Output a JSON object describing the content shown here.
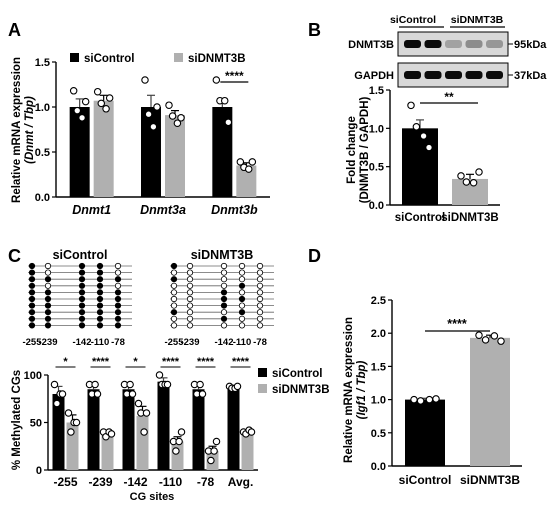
{
  "chart_data": [
    {
      "panel": "A",
      "type": "bar",
      "ylabel": "Relative mRNA expression",
      "ylabel2": "(Dnmt / Tbp)",
      "ylim": [
        0,
        1.5
      ],
      "yticks": [
        "0.0",
        "0.5",
        "1.0",
        "1.5"
      ],
      "categories": [
        "Dnmt1",
        "Dnmt3a",
        "Dnmt3b"
      ],
      "series": [
        {
          "name": "siControl",
          "color": "#000000",
          "values": [
            1.0,
            1.0,
            1.0
          ],
          "errors": [
            0.09,
            0.13,
            0.09
          ],
          "points": [
            [
              1.18,
              0.96,
              0.88,
              1.06
            ],
            [
              1.3,
              0.92,
              0.78,
              1.0
            ],
            [
              1.3,
              1.07,
              1.07,
              0.83
            ]
          ]
        },
        {
          "name": "siDNMT3B",
          "color": "#b0b0b0",
          "values": [
            1.07,
            0.91,
            0.35
          ],
          "errors": [
            0.06,
            0.05,
            0.03
          ],
          "points": [
            [
              1.17,
              1.04,
              0.98,
              1.1
            ],
            [
              1.02,
              0.9,
              0.82,
              0.88
            ],
            [
              0.39,
              0.33,
              0.31,
              0.39
            ]
          ]
        }
      ],
      "annotations": [
        {
          "category": "Dnmt3b",
          "text": "****"
        }
      ]
    },
    {
      "panel": "B",
      "type": "bar",
      "blot": {
        "groups": [
          "siControl",
          "siDNMT3B"
        ],
        "rows": [
          {
            "label": "DNMT3B",
            "marker": "95kDa",
            "intensity": [
              0.95,
              0.95,
              0.25,
              0.35,
              0.3
            ]
          },
          {
            "label": "GAPDH",
            "marker": "37kDa",
            "intensity": [
              0.95,
              0.95,
              0.95,
              0.95,
              0.95
            ]
          }
        ]
      },
      "ylabel": "Fold change",
      "ylabel2": "(DNMT3B / GAPDH)",
      "ylim": [
        0,
        1.5
      ],
      "yticks": [
        "0.0",
        "0.5",
        "1.0",
        "1.5"
      ],
      "categories": [
        "siControl",
        "siDNMT3B"
      ],
      "values": [
        1.0,
        0.34
      ],
      "errors": [
        0.11,
        0.06
      ],
      "colors": [
        "#000000",
        "#b0b0b0"
      ],
      "points": [
        [
          1.3,
          1.02,
          0.9,
          0.75
        ],
        [
          0.38,
          0.3,
          0.29,
          0.43
        ]
      ],
      "annotations": [
        {
          "text": "**"
        }
      ]
    },
    {
      "panel": "C",
      "type": "bar",
      "methylation_maps": [
        {
          "title": "siControl",
          "sites": [
            "-255",
            "-239",
            "-142",
            "-110",
            "-78"
          ],
          "clones": [
            [
              1,
              0,
              1,
              1,
              0
            ],
            [
              1,
              0,
              1,
              1,
              0
            ],
            [
              1,
              1,
              1,
              1,
              1
            ],
            [
              1,
              0,
              1,
              1,
              0
            ],
            [
              1,
              1,
              1,
              1,
              1
            ],
            [
              1,
              1,
              1,
              1,
              1
            ],
            [
              1,
              1,
              1,
              1,
              1
            ],
            [
              1,
              1,
              1,
              1,
              1
            ],
            [
              1,
              1,
              1,
              1,
              1
            ],
            [
              1,
              1,
              1,
              1,
              1
            ]
          ]
        },
        {
          "title": "siDNMT3B",
          "sites": [
            "-255",
            "-239",
            "-142",
            "-110",
            "-78"
          ],
          "clones": [
            [
              1,
              0,
              0,
              0,
              0
            ],
            [
              0,
              0,
              0,
              0,
              0
            ],
            [
              1,
              0,
              0,
              0,
              0
            ],
            [
              0,
              0,
              0,
              1,
              0
            ],
            [
              0,
              0,
              1,
              0,
              0
            ],
            [
              0,
              0,
              1,
              1,
              0
            ],
            [
              0,
              0,
              1,
              0,
              0
            ],
            [
              1,
              0,
              0,
              1,
              0
            ],
            [
              0,
              0,
              1,
              0,
              0
            ],
            [
              0,
              0,
              0,
              0,
              0
            ]
          ]
        }
      ],
      "ylabel": "% Methylated CGs",
      "xlabel": "CG sites",
      "ylim": [
        0,
        100
      ],
      "yticks": [
        "0",
        "50",
        "100"
      ],
      "categories": [
        "-255",
        "-239",
        "-142",
        "-110",
        "-78",
        "Avg."
      ],
      "series": [
        {
          "name": "siControl",
          "color": "#000000",
          "values": [
            80,
            85,
            85,
            93,
            85,
            87
          ],
          "errors": [
            8,
            4,
            4,
            4,
            4,
            2
          ],
          "points": [
            [
              90,
              70,
              80,
              80
            ],
            [
              90,
              80,
              90,
              80
            ],
            [
              90,
              80,
              90,
              80
            ],
            [
              100,
              90,
              90,
              90
            ],
            [
              90,
              80,
              90,
              80
            ],
            [
              88,
              86,
              86,
              88
            ]
          ]
        },
        {
          "name": "siDNMT3B",
          "color": "#b0b0b0",
          "values": [
            50,
            38,
            57,
            30,
            20,
            40
          ],
          "errors": [
            8,
            3,
            10,
            5,
            5,
            2
          ],
          "points": [
            [
              60,
              40,
              50,
              50
            ],
            [
              40,
              35,
              40,
              38
            ],
            [
              70,
              60,
              40,
              60
            ],
            [
              30,
              20,
              30,
              40
            ],
            [
              20,
              10,
              20,
              30
            ],
            [
              40,
              38,
              42,
              40
            ]
          ]
        }
      ],
      "annotations": [
        "*",
        "****",
        "*",
        "****",
        "****",
        "****"
      ]
    },
    {
      "panel": "D",
      "type": "bar",
      "ylabel": "Relative mRNA expression",
      "ylabel2": "(Igf1 / Tbp)",
      "ylim": [
        0,
        2.5
      ],
      "yticks": [
        "0.0",
        "0.5",
        "1.0",
        "1.5",
        "2.0",
        "2.5"
      ],
      "categories": [
        "siControl",
        "siDNMT3B"
      ],
      "values": [
        1.0,
        1.93
      ],
      "errors": [
        0.02,
        0.04
      ],
      "colors": [
        "#000000",
        "#b0b0b0"
      ],
      "points": [
        [
          1.0,
          0.98,
          1.0,
          1.01
        ],
        [
          1.97,
          1.9,
          1.96,
          1.88
        ]
      ],
      "annotations": [
        {
          "text": "****"
        }
      ]
    }
  ]
}
